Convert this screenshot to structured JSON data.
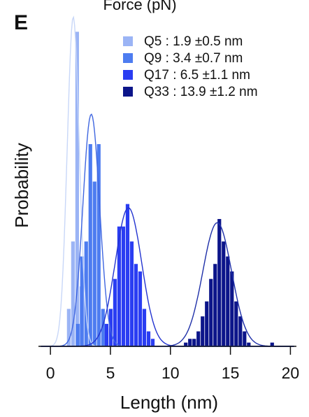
{
  "chart_data": {
    "type": "bar",
    "panel_label": "E",
    "top_cutoff_text": "Force (pN)",
    "xlabel": "Length (nm)",
    "ylabel": "Probability",
    "xlim": [
      -1,
      20.5
    ],
    "ylim": [
      0,
      0.44
    ],
    "xticks": [
      0,
      5,
      10,
      15,
      20
    ],
    "grid": false,
    "legend_position": "top-right",
    "bin_width": 0.35,
    "series": [
      {
        "name": "Q5",
        "legend_text": "Q5 :   1.9 ±0.5 nm",
        "color": "#9bb4f5",
        "fit_color": "#c8d7f8",
        "mean": 1.9,
        "sd": 0.5,
        "bins": [
          [
            1.55,
            0.05
          ],
          [
            1.9,
            0.14
          ],
          [
            2.25,
            0.42
          ],
          [
            2.6,
            0.08
          ]
        ],
        "fit_peak": 0.44
      },
      {
        "name": "Q9",
        "legend_text": "Q9 :   3.4 ±0.7 nm",
        "color": "#4d7cf0",
        "fit_color": "#3f66e0",
        "mean": 3.4,
        "sd": 0.7,
        "bins": [
          [
            2.3,
            0.03
          ],
          [
            2.65,
            0.12
          ],
          [
            3.0,
            0.14
          ],
          [
            3.35,
            0.27
          ],
          [
            3.7,
            0.22
          ],
          [
            4.05,
            0.27
          ],
          [
            4.4,
            0.05
          ]
        ],
        "fit_peak": 0.31
      },
      {
        "name": "Q17",
        "legend_text": "Q17 : 6.5 ±1.1 nm",
        "color": "#2a3df2",
        "fit_color": "#2233d0",
        "mean": 6.5,
        "sd": 1.1,
        "bins": [
          [
            4.7,
            0.03
          ],
          [
            5.05,
            0.05
          ],
          [
            5.4,
            0.09
          ],
          [
            5.75,
            0.16
          ],
          [
            6.1,
            0.16
          ],
          [
            6.45,
            0.19
          ],
          [
            6.8,
            0.14
          ],
          [
            7.15,
            0.11
          ],
          [
            7.5,
            0.1
          ],
          [
            7.85,
            0.05
          ],
          [
            8.2,
            0.02
          ],
          [
            8.55,
            0.01
          ]
        ],
        "fit_peak": 0.185
      },
      {
        "name": "Q33",
        "legend_text": "Q33 : 13.9 ±1.2 nm",
        "color": "#0c158a",
        "fit_color": "#1e2fa8",
        "mean": 13.9,
        "sd": 1.2,
        "bins": [
          [
            11.3,
            0.005
          ],
          [
            11.65,
            0.01
          ],
          [
            12.0,
            0.01
          ],
          [
            12.35,
            0.02
          ],
          [
            12.7,
            0.04
          ],
          [
            13.05,
            0.06
          ],
          [
            13.4,
            0.09
          ],
          [
            13.75,
            0.11
          ],
          [
            14.1,
            0.17
          ],
          [
            14.45,
            0.14
          ],
          [
            14.8,
            0.12
          ],
          [
            15.15,
            0.1
          ],
          [
            15.5,
            0.06
          ],
          [
            15.85,
            0.04
          ],
          [
            16.2,
            0.02
          ],
          [
            16.55,
            0.005
          ],
          [
            18.5,
            0.005
          ]
        ],
        "fit_peak": 0.165
      }
    ]
  }
}
